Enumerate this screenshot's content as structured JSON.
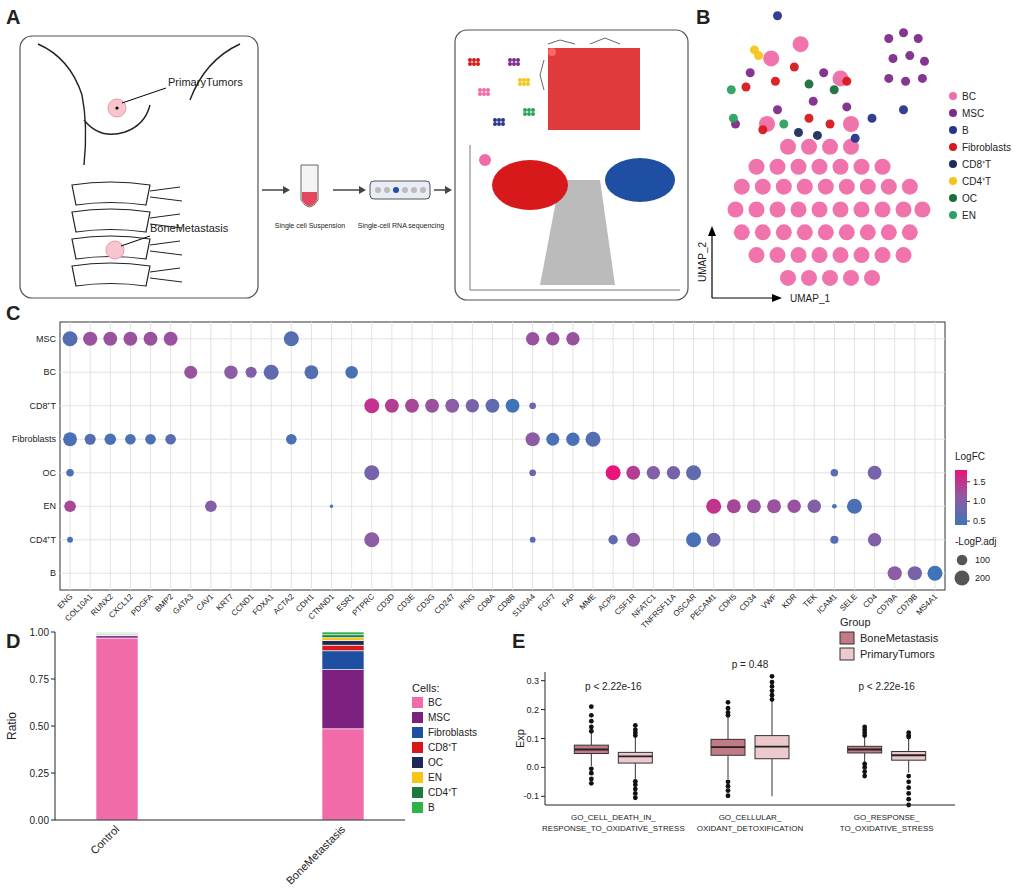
{
  "diagram": {
    "label": "A",
    "primary": "PrimaryTumors",
    "bone": "BoneMetastasis",
    "suspension": "Single cell Suspension",
    "sequencing": "Single-cell RNA sequencing"
  },
  "chart_data": [
    {
      "type": "scatter",
      "label": "B",
      "x_label": "UMAP_1",
      "y_label": "UMAP_2",
      "tick_labels": false,
      "xlim": [
        0,
        100
      ],
      "ylim": [
        0,
        100
      ],
      "series": [
        {
          "name": "BC",
          "color": "#f06ba8",
          "x": [
            30,
            40,
            50,
            60,
            15,
            25,
            35,
            45,
            55,
            65,
            75,
            8,
            18,
            28,
            38,
            48,
            58,
            68,
            78,
            88,
            5,
            15,
            25,
            35,
            45,
            55,
            65,
            75,
            85,
            94,
            8,
            18,
            28,
            38,
            48,
            58,
            68,
            78,
            88,
            15,
            25,
            35,
            45,
            55,
            65,
            75,
            85,
            30,
            40,
            50,
            60,
            70,
            22,
            36,
            55,
            60,
            20
          ],
          "y": [
            52,
            52,
            52,
            52,
            45,
            45,
            45,
            45,
            45,
            45,
            45,
            38,
            38,
            38,
            38,
            38,
            38,
            38,
            38,
            38,
            30,
            30,
            30,
            30,
            30,
            30,
            30,
            30,
            30,
            30,
            22,
            22,
            22,
            22,
            22,
            22,
            22,
            22,
            22,
            14,
            14,
            14,
            14,
            14,
            14,
            14,
            14,
            6,
            6,
            6,
            6,
            6,
            83,
            88,
            76,
            60,
            60
          ]
        },
        {
          "name": "MSC",
          "color": "#7d2b8b",
          "x": [
            78,
            85,
            92,
            80,
            88,
            95,
            78,
            86,
            94,
            5,
            25,
            42,
            47,
            12,
            58
          ],
          "y": [
            90,
            92,
            90,
            83,
            84,
            82,
            76,
            75,
            76,
            60,
            65,
            68,
            78,
            78,
            66
          ]
        },
        {
          "name": "B",
          "color": "#27348b",
          "x": [
            25,
            70,
            62,
            85
          ],
          "y": [
            98,
            62,
            55,
            65
          ]
        },
        {
          "name": "Fibroblasts",
          "color": "#d7191c",
          "x": [
            10,
            24,
            33,
            40,
            18,
            50,
            58
          ],
          "y": [
            73,
            75,
            80,
            62,
            58,
            60,
            75
          ]
        },
        {
          "name": "CD8⁺T",
          "color": "#1f2d5c",
          "x": [
            35,
            44
          ],
          "y": [
            57,
            56
          ]
        },
        {
          "name": "CD4⁺T",
          "color": "#f5c518",
          "x": [
            14,
            16
          ],
          "y": [
            86,
            84
          ]
        },
        {
          "name": "OC",
          "color": "#1b6e3a",
          "x": [
            40,
            52
          ],
          "y": [
            74,
            72
          ]
        },
        {
          "name": "EN",
          "color": "#2ca25f",
          "x": [
            4,
            3,
            28
          ],
          "y": [
            62,
            72,
            60
          ]
        }
      ]
    },
    {
      "type": "dot",
      "label": "C",
      "rows": [
        "MSC",
        "BC",
        "CD8⁺T",
        "Fibroblasts",
        "OC",
        "EN",
        "CD4⁺T",
        "B"
      ],
      "columns": [
        "ENG",
        "COL10A1",
        "RUNX2",
        "CXCL12",
        "PDGFA",
        "BMP2",
        "GATA3",
        "CAV1",
        "KRT7",
        "CCND1",
        "FOXA1",
        "ACTA2",
        "CDH1",
        "CTNND1",
        "ESR1",
        "PTPRC",
        "CD3D",
        "CD3E",
        "CD3G",
        "CD247",
        "IFNG",
        "CD8A",
        "CD8B",
        "S100A4",
        "FGF7",
        "FAP",
        "MME",
        "ACP5",
        "CSF1R",
        "NFATC1",
        "TNFRSF11A",
        "OSCAR",
        "PECAM1",
        "CDH5",
        "CD34",
        "VWF",
        "KDR",
        "TEK",
        "ICAM1",
        "SELE",
        "CD4",
        "CD79A",
        "CD79B",
        "MS4A1"
      ],
      "points": [
        {
          "row": "MSC",
          "gene": "ENG",
          "logfc": 0.6,
          "p": 200
        },
        {
          "row": "MSC",
          "gene": "COL10A1",
          "logfc": 1.2,
          "p": 180
        },
        {
          "row": "MSC",
          "gene": "RUNX2",
          "logfc": 1.2,
          "p": 170
        },
        {
          "row": "MSC",
          "gene": "CXCL12",
          "logfc": 1.2,
          "p": 170
        },
        {
          "row": "MSC",
          "gene": "PDGFA",
          "logfc": 1.2,
          "p": 170
        },
        {
          "row": "MSC",
          "gene": "BMP2",
          "logfc": 1.2,
          "p": 170
        },
        {
          "row": "MSC",
          "gene": "ACTA2",
          "logfc": 0.6,
          "p": 200
        },
        {
          "row": "MSC",
          "gene": "S100A4",
          "logfc": 1.2,
          "p": 160
        },
        {
          "row": "MSC",
          "gene": "FGF7",
          "logfc": 1.2,
          "p": 160
        },
        {
          "row": "MSC",
          "gene": "FAP",
          "logfc": 1.2,
          "p": 160
        },
        {
          "row": "BC",
          "gene": "GATA3",
          "logfc": 1.2,
          "p": 150
        },
        {
          "row": "BC",
          "gene": "KRT7",
          "logfc": 1.1,
          "p": 160
        },
        {
          "row": "BC",
          "gene": "CCND1",
          "logfc": 1.0,
          "p": 110
        },
        {
          "row": "BC",
          "gene": "FOXA1",
          "logfc": 0.7,
          "p": 200
        },
        {
          "row": "BC",
          "gene": "CDH1",
          "logfc": 0.6,
          "p": 170
        },
        {
          "row": "BC",
          "gene": "ESR1",
          "logfc": 0.5,
          "p": 140
        },
        {
          "row": "CD8⁺T",
          "gene": "PTPRC",
          "logfc": 1.5,
          "p": 200
        },
        {
          "row": "CD8⁺T",
          "gene": "CD3D",
          "logfc": 1.4,
          "p": 170
        },
        {
          "row": "CD8⁺T",
          "gene": "CD3E",
          "logfc": 1.3,
          "p": 170
        },
        {
          "row": "CD8⁺T",
          "gene": "CD3G",
          "logfc": 1.2,
          "p": 170
        },
        {
          "row": "CD8⁺T",
          "gene": "CD247",
          "logfc": 1.1,
          "p": 170
        },
        {
          "row": "CD8⁺T",
          "gene": "IFNG",
          "logfc": 0.9,
          "p": 160
        },
        {
          "row": "CD8⁺T",
          "gene": "CD8A",
          "logfc": 0.7,
          "p": 170
        },
        {
          "row": "CD8⁺T",
          "gene": "CD8B",
          "logfc": 0.4,
          "p": 170
        },
        {
          "row": "CD8⁺T",
          "gene": "S100A4",
          "logfc": 0.8,
          "p": 40
        },
        {
          "row": "Fibroblasts",
          "gene": "ENG",
          "logfc": 0.5,
          "p": 170
        },
        {
          "row": "Fibroblasts",
          "gene": "COL10A1",
          "logfc": 0.6,
          "p": 110
        },
        {
          "row": "Fibroblasts",
          "gene": "RUNX2",
          "logfc": 0.5,
          "p": 120
        },
        {
          "row": "Fibroblasts",
          "gene": "CXCL12",
          "logfc": 0.5,
          "p": 100
        },
        {
          "row": "Fibroblasts",
          "gene": "PDGFA",
          "logfc": 0.5,
          "p": 100
        },
        {
          "row": "Fibroblasts",
          "gene": "BMP2",
          "logfc": 0.6,
          "p": 100
        },
        {
          "row": "Fibroblasts",
          "gene": "ACTA2",
          "logfc": 0.5,
          "p": 100
        },
        {
          "row": "Fibroblasts",
          "gene": "S100A4",
          "logfc": 1.1,
          "p": 180
        },
        {
          "row": "Fibroblasts",
          "gene": "FGF7",
          "logfc": 0.5,
          "p": 150
        },
        {
          "row": "Fibroblasts",
          "gene": "FAP",
          "logfc": 0.5,
          "p": 160
        },
        {
          "row": "Fibroblasts",
          "gene": "MME",
          "logfc": 0.6,
          "p": 200
        },
        {
          "row": "OC",
          "gene": "ENG",
          "logfc": 0.5,
          "p": 50
        },
        {
          "row": "OC",
          "gene": "PTPRC",
          "logfc": 0.9,
          "p": 200
        },
        {
          "row": "OC",
          "gene": "S100A4",
          "logfc": 0.8,
          "p": 40
        },
        {
          "row": "OC",
          "gene": "ACP5",
          "logfc": 1.8,
          "p": 200
        },
        {
          "row": "OC",
          "gene": "CSF1R",
          "logfc": 1.4,
          "p": 170
        },
        {
          "row": "OC",
          "gene": "NFATC1",
          "logfc": 1.0,
          "p": 160
        },
        {
          "row": "OC",
          "gene": "TNFRSF11A",
          "logfc": 0.9,
          "p": 160
        },
        {
          "row": "OC",
          "gene": "OSCAR",
          "logfc": 0.7,
          "p": 200
        },
        {
          "row": "OC",
          "gene": "ICAM1",
          "logfc": 0.6,
          "p": 50
        },
        {
          "row": "OC",
          "gene": "CD4",
          "logfc": 0.9,
          "p": 170
        },
        {
          "row": "EN",
          "gene": "ENG",
          "logfc": 1.3,
          "p": 120
        },
        {
          "row": "EN",
          "gene": "CAV1",
          "logfc": 1.0,
          "p": 120
        },
        {
          "row": "EN",
          "gene": "CTNND1",
          "logfc": 0.4,
          "p": 10
        },
        {
          "row": "EN",
          "gene": "PECAM1",
          "logfc": 1.5,
          "p": 200
        },
        {
          "row": "EN",
          "gene": "CDH5",
          "logfc": 1.3,
          "p": 170
        },
        {
          "row": "EN",
          "gene": "CD34",
          "logfc": 1.2,
          "p": 170
        },
        {
          "row": "EN",
          "gene": "VWF",
          "logfc": 1.2,
          "p": 170
        },
        {
          "row": "EN",
          "gene": "KDR",
          "logfc": 1.2,
          "p": 160
        },
        {
          "row": "EN",
          "gene": "TEK",
          "logfc": 1.0,
          "p": 160
        },
        {
          "row": "EN",
          "gene": "ICAM1",
          "logfc": 0.5,
          "p": 20
        },
        {
          "row": "EN",
          "gene": "SELE",
          "logfc": 0.5,
          "p": 200
        },
        {
          "row": "CD4⁺T",
          "gene": "ENG",
          "logfc": 0.5,
          "p": 30
        },
        {
          "row": "CD4⁺T",
          "gene": "PTPRC",
          "logfc": 1.1,
          "p": 200
        },
        {
          "row": "CD4⁺T",
          "gene": "S100A4",
          "logfc": 0.6,
          "p": 30
        },
        {
          "row": "CD4⁺T",
          "gene": "ACP5",
          "logfc": 0.7,
          "p": 80
        },
        {
          "row": "CD4⁺T",
          "gene": "CSF1R",
          "logfc": 1.1,
          "p": 170
        },
        {
          "row": "CD4⁺T",
          "gene": "OSCAR",
          "logfc": 0.5,
          "p": 200
        },
        {
          "row": "CD4⁺T",
          "gene": "PECAM1",
          "logfc": 0.8,
          "p": 170
        },
        {
          "row": "CD4⁺T",
          "gene": "ICAM1",
          "logfc": 0.6,
          "p": 60
        },
        {
          "row": "CD4⁺T",
          "gene": "CD4",
          "logfc": 1.0,
          "p": 160
        },
        {
          "row": "B",
          "gene": "CD79A",
          "logfc": 1.1,
          "p": 180
        },
        {
          "row": "B",
          "gene": "CD79B",
          "logfc": 0.9,
          "p": 180
        },
        {
          "row": "B",
          "gene": "MS4A1",
          "logfc": 0.4,
          "p": 200
        }
      ],
      "color_title": "LogFC",
      "color_range": [
        0.4,
        1.8
      ],
      "color_ticks": [
        0.5,
        {
          "value": 1,
          "label": "1.0"
        },
        1.5
      ],
      "size_title": "-LogP.adj",
      "size_range": [
        0,
        200
      ],
      "size_ticks": [
        100,
        200
      ],
      "grid": true
    },
    {
      "type": "bar",
      "label": "D",
      "stacked": true,
      "y_label": "Ratio",
      "legend_title": "Cells:",
      "categories": [
        "Control",
        "BoneMetastasis"
      ],
      "ylim": [
        0,
        1
      ],
      "yticks": [
        {
          "value": 0,
          "label": "0.00"
        },
        0.25,
        {
          "value": 0.5,
          "label": "0.50"
        },
        0.75,
        {
          "value": 1,
          "label": "1.00"
        }
      ],
      "series": [
        {
          "name": "BC",
          "color": "#f06ba8",
          "values": [
            0.968,
            0.485
          ]
        },
        {
          "name": "MSC",
          "color": "#7d2181",
          "values": [
            0.012,
            0.315
          ]
        },
        {
          "name": "Fibroblasts",
          "color": "#1f4fa3",
          "values": [
            0.004,
            0.1
          ]
        },
        {
          "name": "CD8⁺T",
          "color": "#d7191c",
          "values": [
            0.003,
            0.03
          ]
        },
        {
          "name": "OC",
          "color": "#1c2a5a",
          "values": [
            0.003,
            0.025
          ]
        },
        {
          "name": "EN",
          "color": "#f5c518",
          "values": [
            0.003,
            0.015
          ]
        },
        {
          "name": "CD4⁺T",
          "color": "#1b7a3a",
          "values": [
            0.003,
            0.015
          ]
        },
        {
          "name": "B",
          "color": "#2db34a",
          "values": [
            0.004,
            0.015
          ]
        }
      ]
    },
    {
      "type": "box",
      "label": "E",
      "y_label": "Exp",
      "legend_title": "Group",
      "categories": [
        "GO_CELL_DEATH_IN_\nRESPONSE_TO_OXIDATIVE_STRESS",
        "GO_CELLULAR_\nOXIDANT_DETOXIFICATION",
        "GO_RESPONSE_\nTO_OXIDATIVE_STRESS"
      ],
      "annotations": [
        "p < 2.22e-16",
        "p = 0.48",
        "p < 2.22e-16"
      ],
      "ylim": [
        -0.13,
        0.33
      ],
      "yticks": [
        -0.1,
        {
          "value": 0,
          "label": "0.0"
        },
        0.1,
        0.2,
        0.3
      ],
      "series": [
        {
          "name": "BoneMetastasis",
          "color": "#c27a85",
          "boxes": [
            {
              "low": 0.005,
              "q1": 0.048,
              "median": 0.062,
              "q3": 0.077,
              "high": 0.12,
              "outliers": [
                -0.055,
                -0.04,
                -0.02,
                -0.005,
                0.125,
                0.14,
                0.16,
                0.18,
                0.21
              ]
            },
            {
              "low": -0.04,
              "q1": 0.042,
              "median": 0.07,
              "q3": 0.097,
              "high": 0.175,
              "outliers": [
                -0.098,
                -0.08,
                -0.065,
                -0.05,
                0.18,
                0.19,
                0.205,
                0.225
              ]
            },
            {
              "low": 0.018,
              "q1": 0.05,
              "median": 0.062,
              "q3": 0.073,
              "high": 0.105,
              "outliers": [
                -0.03,
                -0.015,
                0,
                0.012,
                0.11,
                0.12,
                0.13,
                0.14
              ]
            }
          ]
        },
        {
          "name": "PrimaryTumors",
          "color": "#ecc9cd",
          "boxes": [
            {
              "low": -0.04,
              "q1": 0.015,
              "median": 0.038,
              "q3": 0.052,
              "high": 0.105,
              "outliers": [
                -0.105,
                -0.09,
                -0.075,
                -0.06,
                -0.048,
                0.11,
                0.12,
                0.13,
                0.145
              ]
            },
            {
              "low": -0.1,
              "q1": 0.03,
              "median": 0.072,
              "q3": 0.11,
              "high": 0.23,
              "outliers": [
                0.235,
                0.25,
                0.265,
                0.28,
                0.295,
                0.315
              ]
            },
            {
              "low": -0.018,
              "q1": 0.025,
              "median": 0.042,
              "q3": 0.055,
              "high": 0.1,
              "outliers": [
                -0.13,
                -0.11,
                -0.09,
                -0.07,
                -0.05,
                -0.03,
                0.105,
                0.11,
                0.12
              ]
            }
          ]
        }
      ]
    }
  ]
}
